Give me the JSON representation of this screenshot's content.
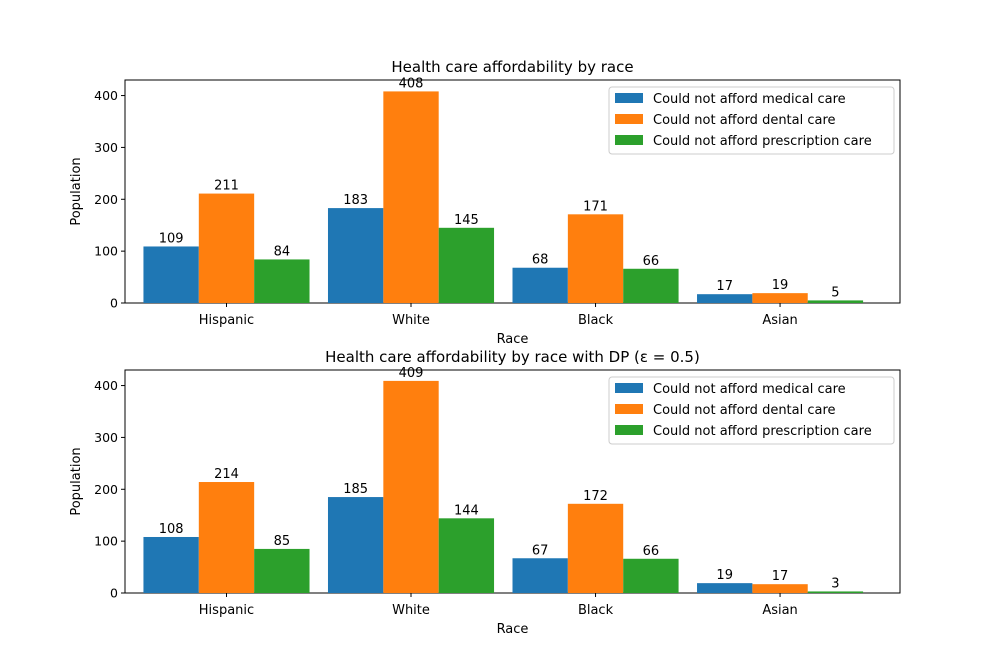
{
  "chart_data": [
    {
      "type": "bar",
      "title": "Health care affordability by race",
      "xlabel": "Race",
      "ylabel": "Population",
      "categories": [
        "Hispanic",
        "White",
        "Black",
        "Asian"
      ],
      "ylim": [
        0,
        430
      ],
      "yticks": [
        0,
        100,
        200,
        300,
        400
      ],
      "legend_position": "top-right",
      "grid": false,
      "series": [
        {
          "name": "Could not afford medical care",
          "color": "#1f77b4",
          "values": [
            109,
            183,
            68,
            17
          ]
        },
        {
          "name": "Could not afford dental care",
          "color": "#ff7f0e",
          "values": [
            211,
            408,
            171,
            19
          ]
        },
        {
          "name": "Could not afford prescription care",
          "color": "#2ca02c",
          "values": [
            84,
            145,
            66,
            5
          ]
        }
      ]
    },
    {
      "type": "bar",
      "title": "Health care affordability by race with DP (ε = 0.5)",
      "xlabel": "Race",
      "ylabel": "Population",
      "categories": [
        "Hispanic",
        "White",
        "Black",
        "Asian"
      ],
      "ylim": [
        0,
        430
      ],
      "yticks": [
        0,
        100,
        200,
        300,
        400
      ],
      "legend_position": "top-right",
      "grid": false,
      "series": [
        {
          "name": "Could not afford medical care",
          "color": "#1f77b4",
          "values": [
            108,
            185,
            67,
            19
          ]
        },
        {
          "name": "Could not afford dental care",
          "color": "#ff7f0e",
          "values": [
            214,
            409,
            172,
            17
          ]
        },
        {
          "name": "Could not afford prescription care",
          "color": "#2ca02c",
          "values": [
            85,
            144,
            66,
            3
          ]
        }
      ]
    }
  ]
}
